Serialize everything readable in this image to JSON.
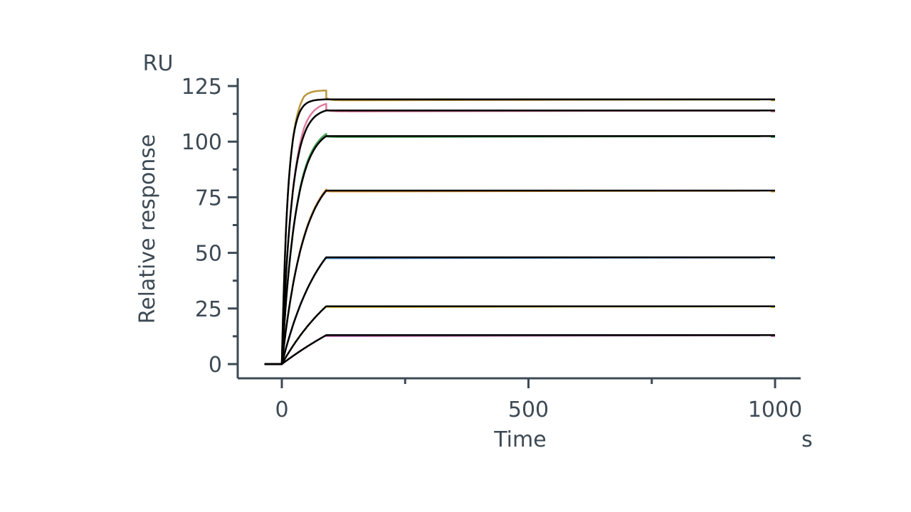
{
  "chart_data": {
    "type": "line",
    "title": "",
    "xlabel": "Time",
    "xunit": "s",
    "ylabel": "Relative response",
    "yunit": "RU",
    "xlim": [
      -70,
      1040
    ],
    "ylim": [
      -6,
      130
    ],
    "x_ticks": [
      0,
      500,
      1000
    ],
    "x_tick_labels": [
      "0",
      "500",
      "1000"
    ],
    "x_minor_ticks": [
      250,
      750
    ],
    "y_ticks": [
      0,
      25,
      50,
      75,
      100,
      125
    ],
    "y_tick_labels": [
      "0",
      "25",
      "50",
      "75",
      "100",
      "125"
    ],
    "y_minor_ticks": [
      12.5,
      37.5,
      62.5,
      87.5,
      112.5
    ],
    "grid": false,
    "legend": "none",
    "association_end_s": 90,
    "colors": {
      "axis": "#3d4a55",
      "fit": "#000000"
    },
    "series": [
      {
        "color": "#b8963a",
        "plateau": 119.0,
        "overshoot": 4,
        "fit_tau": 12
      },
      {
        "color": "#e07a9e",
        "plateau": 114.0,
        "overshoot": 3,
        "fit_tau": 20
      },
      {
        "color": "#4aa85a",
        "plateau": 102.5,
        "overshoot": 1,
        "fit_tau": 28
      },
      {
        "color": "#e89a3a",
        "plateau": 78.0,
        "overshoot": 0.5,
        "fit_tau": 45
      },
      {
        "color": "#4a8ac8",
        "plateau": 48.0,
        "overshoot": 0,
        "fit_tau": 80
      },
      {
        "color": "#d8c03a",
        "plateau": 26.0,
        "overshoot": 0,
        "fit_tau": 140
      },
      {
        "color": "#c070b8",
        "plateau": 13.0,
        "overshoot": 0,
        "fit_tau": 300
      }
    ]
  }
}
